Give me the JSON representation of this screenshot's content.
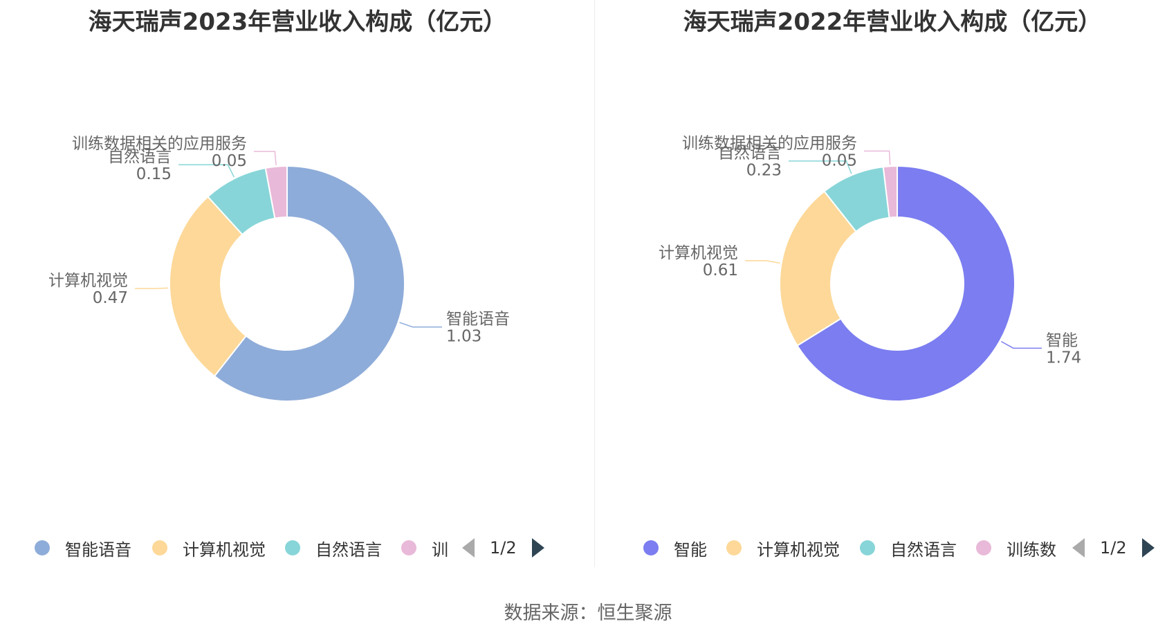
{
  "chart_data": [
    {
      "type": "pie",
      "title": "海天瑞声2023年营业收入构成（亿元）",
      "slices": [
        {
          "name": "智能语音",
          "value": 1.03,
          "value_label": "1.03",
          "color": "#8eacd9"
        },
        {
          "name": "计算机视觉",
          "value": 0.47,
          "value_label": "0.47",
          "color": "#fdd898"
        },
        {
          "name": "自然语言",
          "value": 0.15,
          "value_label": "0.15",
          "color": "#87d5d8"
        },
        {
          "name": "训练数据相关的应用服务",
          "value": 0.05,
          "value_label": "0.05",
          "color": "#e9b9d9"
        }
      ],
      "legend": {
        "placement": "bottom",
        "items": [
          "智能语音",
          "计算机视觉",
          "自然语言",
          "训"
        ],
        "page": "1/2"
      }
    },
    {
      "type": "pie",
      "title": "海天瑞声2022年营业收入构成（亿元）",
      "slices": [
        {
          "name": "智能",
          "value": 1.74,
          "value_label": "1.74",
          "color": "#7b7df0"
        },
        {
          "name": "计算机视觉",
          "value": 0.61,
          "value_label": "0.61",
          "color": "#fdd898"
        },
        {
          "name": "自然语言",
          "value": 0.23,
          "value_label": "0.23",
          "color": "#87d5d8"
        },
        {
          "name": "训练数据相关的应用服务",
          "value": 0.05,
          "value_label": "0.05",
          "color": "#e9b9d9"
        }
      ],
      "legend": {
        "placement": "bottom",
        "items": [
          "智能",
          "计算机视觉",
          "自然语言",
          "训练数"
        ],
        "page": "1/2"
      }
    }
  ],
  "source": "数据来源：恒生聚源"
}
